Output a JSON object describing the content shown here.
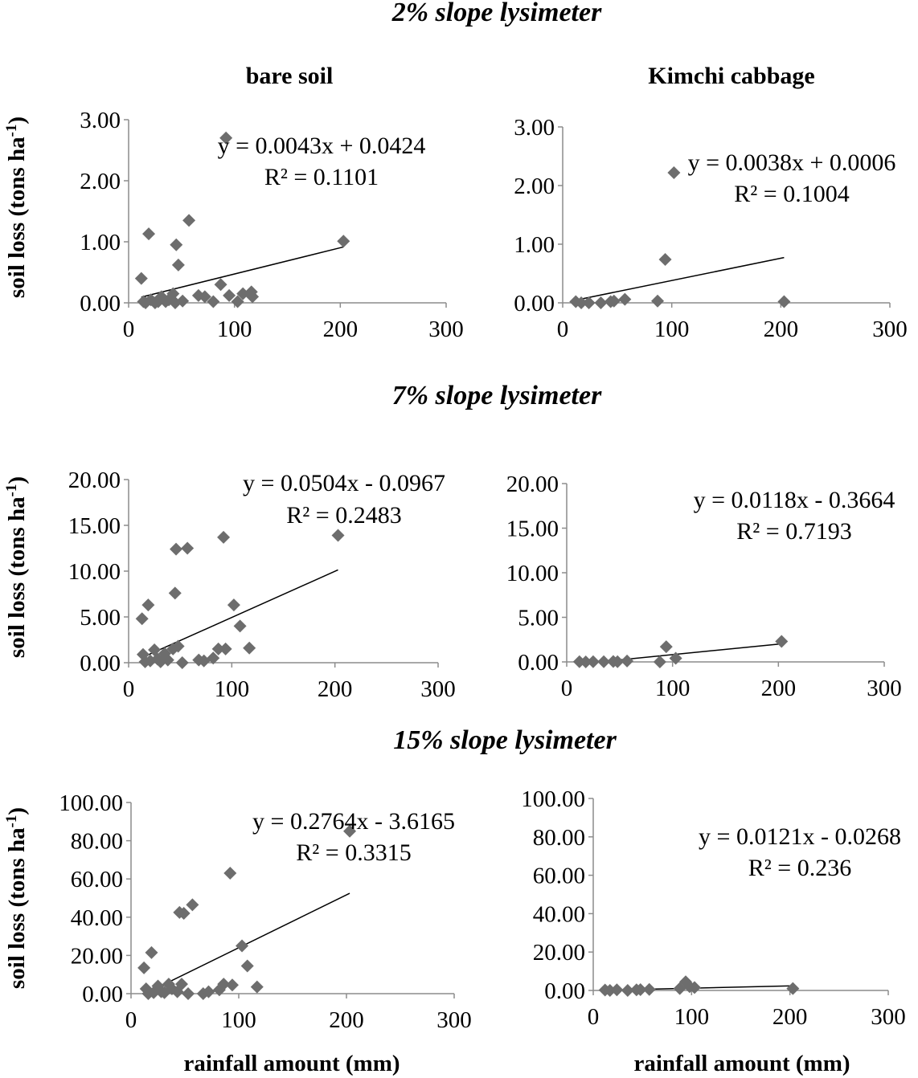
{
  "sections": [
    {
      "title": "2% slope lysimeter"
    },
    {
      "title": "7% slope lysimeter"
    },
    {
      "title": "15% slope lysimeter"
    }
  ],
  "chart_data": [
    {
      "type": "scatter",
      "section": "2% slope lysimeter",
      "title": "bare soil",
      "xlabel": "",
      "ylabel": "soil loss (tons ha-1)",
      "xlim": [
        0,
        300
      ],
      "ylim": [
        0,
        3
      ],
      "xticks": [
        "0",
        "100",
        "200",
        "300"
      ],
      "yticks": [
        "0.00",
        "1.00",
        "2.00",
        "3.00"
      ],
      "marker_color": "#6d6d6d",
      "equation": "y = 0.0043x + 0.0424",
      "r2": "R² = 0.1101",
      "trendline": {
        "slope": 0.0043,
        "intercept": 0.0424,
        "x_range": [
          12,
          203
        ]
      },
      "points": [
        [
          12,
          0.4
        ],
        [
          14,
          0.02
        ],
        [
          16,
          0.0
        ],
        [
          19,
          1.13
        ],
        [
          21,
          0.05
        ],
        [
          25,
          0.0
        ],
        [
          28,
          0.02
        ],
        [
          31,
          0.1
        ],
        [
          35,
          0.02
        ],
        [
          38,
          0.05
        ],
        [
          42,
          0.15
        ],
        [
          44,
          0.0
        ],
        [
          45,
          0.95
        ],
        [
          47,
          0.62
        ],
        [
          51,
          0.03
        ],
        [
          57,
          1.35
        ],
        [
          66,
          0.12
        ],
        [
          72,
          0.1
        ],
        [
          80,
          0.02
        ],
        [
          87,
          0.3
        ],
        [
          92,
          2.7
        ],
        [
          95,
          0.12
        ],
        [
          103,
          0.02
        ],
        [
          108,
          0.15
        ],
        [
          116,
          0.18
        ],
        [
          117,
          0.1
        ],
        [
          203,
          1.01
        ]
      ]
    },
    {
      "type": "scatter",
      "section": "2% slope lysimeter",
      "title": "Kimchi cabbage",
      "xlabel": "",
      "ylabel": "",
      "xlim": [
        0,
        300
      ],
      "ylim": [
        0,
        3
      ],
      "xticks": [
        "0",
        "100",
        "200",
        "300"
      ],
      "yticks": [
        "0.00",
        "1.00",
        "2.00",
        "3.00"
      ],
      "marker_color": "#6d6d6d",
      "equation": "y = 0.0038x + 0.0006",
      "r2": "R² = 0.1004",
      "trendline": {
        "slope": 0.0038,
        "intercept": 0.0006,
        "x_range": [
          12,
          203
        ]
      },
      "points": [
        [
          12,
          0.02
        ],
        [
          17,
          0.0
        ],
        [
          24,
          0.0
        ],
        [
          35,
          0.0
        ],
        [
          44,
          0.02
        ],
        [
          47,
          0.03
        ],
        [
          57,
          0.06
        ],
        [
          87,
          0.03
        ],
        [
          94,
          0.74
        ],
        [
          102,
          2.22
        ],
        [
          203,
          0.02
        ]
      ]
    },
    {
      "type": "scatter",
      "section": "7% slope lysimeter",
      "title": "",
      "xlabel": "",
      "ylabel": "soil loss (tons ha-1)",
      "xlim": [
        0,
        300
      ],
      "ylim": [
        0,
        20
      ],
      "xticks": [
        "0",
        "100",
        "200",
        "300"
      ],
      "yticks": [
        "0.00",
        "5.00",
        "10.00",
        "15.00",
        "20.00"
      ],
      "marker_color": "#6d6d6d",
      "equation": "y = 0.0504x - 0.0967",
      "r2": "R² = 0.2483",
      "trendline": {
        "slope": 0.0504,
        "intercept": -0.0967,
        "x_range": [
          12,
          203
        ]
      },
      "points": [
        [
          13,
          4.8
        ],
        [
          14,
          0.9
        ],
        [
          16,
          0.1
        ],
        [
          19,
          6.3
        ],
        [
          21,
          0.2
        ],
        [
          25,
          1.4
        ],
        [
          28,
          0.4
        ],
        [
          31,
          0.1
        ],
        [
          35,
          1.0
        ],
        [
          38,
          0.3
        ],
        [
          43,
          1.5
        ],
        [
          45,
          7.6
        ],
        [
          46,
          12.4
        ],
        [
          48,
          1.8
        ],
        [
          52,
          0.0
        ],
        [
          57,
          12.5
        ],
        [
          68,
          0.3
        ],
        [
          73,
          0.2
        ],
        [
          82,
          0.5
        ],
        [
          87,
          1.5
        ],
        [
          92,
          13.7
        ],
        [
          94,
          1.5
        ],
        [
          102,
          6.3
        ],
        [
          108,
          4.0
        ],
        [
          117,
          1.6
        ],
        [
          203,
          13.9
        ]
      ]
    },
    {
      "type": "scatter",
      "section": "7% slope lysimeter",
      "title": "",
      "xlabel": "",
      "ylabel": "",
      "xlim": [
        0,
        300
      ],
      "ylim": [
        0,
        20
      ],
      "xticks": [
        "0",
        "100",
        "200",
        "300"
      ],
      "yticks": [
        "0.00",
        "5.00",
        "10.00",
        "15.00",
        "20.00"
      ],
      "marker_color": "#6d6d6d",
      "equation": "y = 0.0118x - 0.3664",
      "r2": "R² = 0.7193",
      "trendline": {
        "slope": 0.0118,
        "intercept": -0.3664,
        "x_range": [
          12,
          203
        ]
      },
      "points": [
        [
          12,
          0.02
        ],
        [
          18,
          0.0
        ],
        [
          25,
          0.02
        ],
        [
          35,
          0.02
        ],
        [
          44,
          0.05
        ],
        [
          48,
          0.02
        ],
        [
          57,
          0.1
        ],
        [
          88,
          0.0
        ],
        [
          94,
          1.7
        ],
        [
          103,
          0.4
        ],
        [
          203,
          2.3
        ]
      ]
    },
    {
      "type": "scatter",
      "section": "15% slope lysimeter",
      "title": "",
      "xlabel": "rainfall amount (mm)",
      "ylabel": "soil loss (tons ha-1)",
      "xlim": [
        0,
        300
      ],
      "ylim": [
        0,
        100
      ],
      "xticks": [
        "0",
        "100",
        "200",
        "300"
      ],
      "yticks": [
        "0.00",
        "20.00",
        "40.00",
        "60.00",
        "80.00",
        "100.00"
      ],
      "marker_color": "#6d6d6d",
      "equation": "y = 0.2764x - 3.6165",
      "r2": "R² = 0.3315",
      "trendline": {
        "slope": 0.2764,
        "intercept": -3.6165,
        "x_range": [
          12,
          203
        ]
      },
      "points": [
        [
          12,
          13.5
        ],
        [
          14,
          2.5
        ],
        [
          16,
          0.0
        ],
        [
          19,
          21.5
        ],
        [
          21,
          0.5
        ],
        [
          25,
          4.0
        ],
        [
          28,
          1.0
        ],
        [
          31,
          0.5
        ],
        [
          35,
          5.0
        ],
        [
          38,
          2.5
        ],
        [
          43,
          1.0
        ],
        [
          45,
          42.5
        ],
        [
          47,
          5.0
        ],
        [
          49,
          42.0
        ],
        [
          53,
          0.0
        ],
        [
          57,
          46.5
        ],
        [
          67,
          0.0
        ],
        [
          72,
          1.0
        ],
        [
          82,
          2.0
        ],
        [
          86,
          5.0
        ],
        [
          92,
          63.0
        ],
        [
          94,
          4.5
        ],
        [
          103,
          25.0
        ],
        [
          108,
          14.5
        ],
        [
          117,
          3.5
        ],
        [
          203,
          85.0
        ]
      ]
    },
    {
      "type": "scatter",
      "section": "15% slope lysimeter",
      "title": "",
      "xlabel": "rainfall amount (mm)",
      "ylabel": "",
      "xlim": [
        0,
        300
      ],
      "ylim": [
        0,
        100
      ],
      "xticks": [
        "0",
        "100",
        "200",
        "300"
      ],
      "yticks": [
        "0.00",
        "20.00",
        "40.00",
        "60.00",
        "80.00",
        "100.00"
      ],
      "marker_color": "#6d6d6d",
      "equation": "y = 0.0121x - 0.0268",
      "r2": "R² = 0.236",
      "trendline": {
        "slope": 0.0121,
        "intercept": -0.0268,
        "x_range": [
          12,
          203
        ]
      },
      "points": [
        [
          12,
          0.2
        ],
        [
          17,
          0.0
        ],
        [
          24,
          0.3
        ],
        [
          35,
          0.0
        ],
        [
          44,
          0.3
        ],
        [
          48,
          0.4
        ],
        [
          57,
          0.5
        ],
        [
          88,
          1.0
        ],
        [
          94,
          4.5
        ],
        [
          98,
          2.0
        ],
        [
          103,
          1.5
        ],
        [
          203,
          1.0
        ]
      ]
    }
  ]
}
